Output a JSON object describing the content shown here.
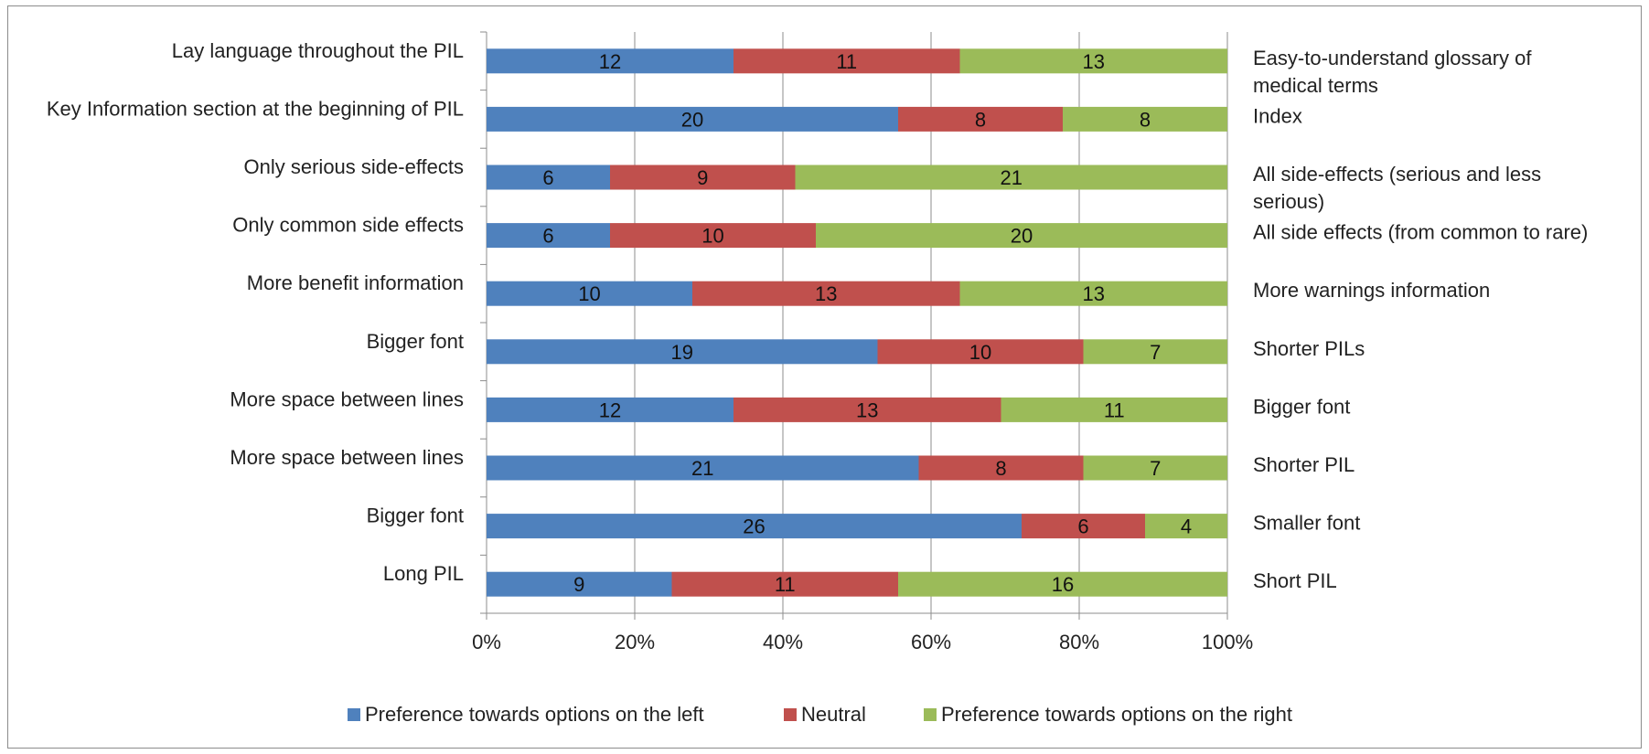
{
  "chart_data": {
    "type": "bar",
    "orientation": "horizontal",
    "stacked": "percent",
    "categories": [
      "Lay language throughout the PIL",
      "Key Information section at the beginning of PIL",
      "Only serious side-effects",
      "Only common side effects",
      "More benefit information",
      "Bigger font",
      "More space between lines",
      "More space between lines",
      "Bigger font",
      "Long PIL"
    ],
    "right_labels": [
      [
        "Easy-to-understand glossary of",
        "medical terms"
      ],
      [
        "Index"
      ],
      [
        "All side-effects  (serious and less",
        "serious)"
      ],
      [
        "All side effects (from common to rare)"
      ],
      [
        "More warnings information"
      ],
      [
        "Shorter PILs"
      ],
      [
        "Bigger font"
      ],
      [
        "Shorter PIL"
      ],
      [
        "Smaller font"
      ],
      [
        "Short PIL"
      ]
    ],
    "series": [
      {
        "name": "Preference towards options on the left",
        "color": "#4f81bd",
        "values": [
          12,
          20,
          6,
          6,
          10,
          19,
          12,
          21,
          26,
          9
        ]
      },
      {
        "name": "Neutral",
        "color": "#c0504d",
        "values": [
          11,
          8,
          9,
          10,
          13,
          10,
          13,
          8,
          6,
          11
        ]
      },
      {
        "name": "Preference towards options on the right",
        "color": "#9bbb59",
        "values": [
          13,
          8,
          21,
          20,
          13,
          7,
          11,
          7,
          4,
          16
        ]
      }
    ],
    "x_ticks": [
      "0%",
      "20%",
      "40%",
      "60%",
      "80%",
      "100%"
    ],
    "xlim": [
      0,
      100
    ],
    "grid": "vertical",
    "legend_position": "bottom"
  }
}
